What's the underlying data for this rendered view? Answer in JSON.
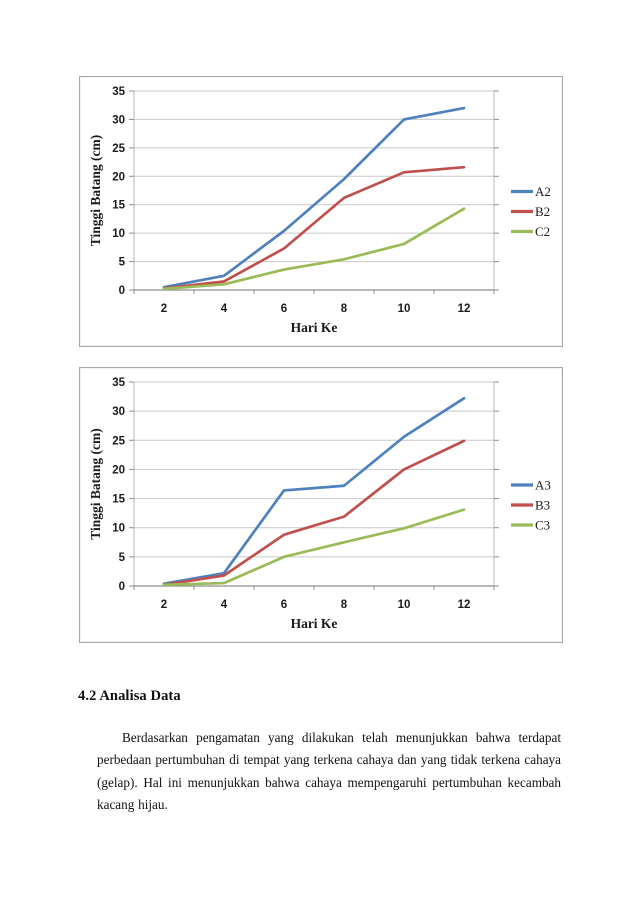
{
  "document": {
    "section_heading": "4.2 Analisa Data",
    "paragraph_lines": [
      "Berdasarkan pengamatan yang dilakukan telah menunjukkan bahwa terdapat",
      "perbedaan pertumbuhan di tempat yang terkena cahaya dan yang tidak terkena cahaya",
      "(gelap). Hal ini menunjukkan bahwa cahaya mempengaruhi pertumbuhan kecambah",
      "kacang hijau."
    ]
  },
  "colors": {
    "series_blue": "#4F81BD",
    "series_red": "#C0504D",
    "series_green": "#9BBB59",
    "gridline": "#c9c9c9",
    "plot_border": "#b8b8b8",
    "axis_line": "#8f8f8f",
    "tick": "#8f8f8f",
    "frame_border": "#a8a8a8",
    "text": "#1a1a1a"
  },
  "chart_data": [
    {
      "type": "line",
      "title": "",
      "x": [
        2,
        4,
        6,
        8,
        10,
        12
      ],
      "xlabel": "Hari Ke",
      "ylabel": "Tinggi Batang (cm)",
      "ylim": [
        0,
        35
      ],
      "ytick_step": 5,
      "grid": true,
      "legend_position": "right",
      "series": [
        {
          "name": "A2",
          "color": "#4F81BD",
          "values": [
            0.5,
            2.5,
            10.4,
            19.5,
            30.0,
            32.0
          ]
        },
        {
          "name": "B2",
          "color": "#C0504D",
          "values": [
            0.3,
            1.5,
            7.3,
            16.2,
            20.7,
            21.6
          ]
        },
        {
          "name": "C2",
          "color": "#9BBB59",
          "values": [
            0.2,
            1.0,
            3.6,
            5.4,
            8.1,
            14.3
          ]
        }
      ]
    },
    {
      "type": "line",
      "title": "",
      "x": [
        2,
        4,
        6,
        8,
        10,
        12
      ],
      "xlabel": "Hari Ke",
      "ylabel": "Tinggi Batang (cm)",
      "ylim": [
        0,
        35
      ],
      "ytick_step": 5,
      "grid": true,
      "legend_position": "right",
      "series": [
        {
          "name": "A3",
          "color": "#4F81BD",
          "values": [
            0.4,
            2.2,
            16.4,
            17.2,
            25.6,
            32.2
          ]
        },
        {
          "name": "B3",
          "color": "#C0504D",
          "values": [
            0.2,
            1.8,
            8.8,
            11.9,
            20.0,
            24.9
          ]
        },
        {
          "name": "C3",
          "color": "#9BBB59",
          "values": [
            0.2,
            0.5,
            5.0,
            7.5,
            9.9,
            13.1
          ]
        }
      ]
    }
  ]
}
